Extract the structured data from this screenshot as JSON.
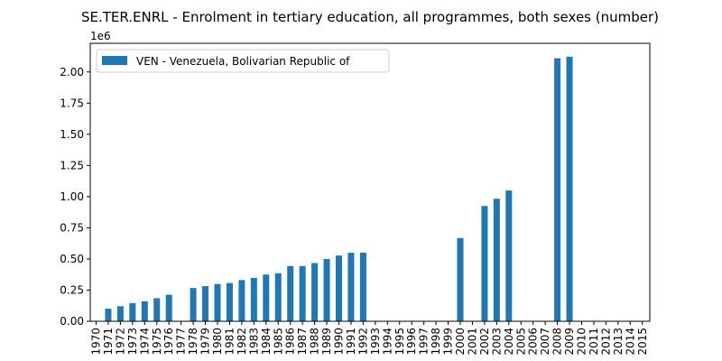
{
  "chart_data": {
    "type": "bar",
    "title": "SE.TER.ENRL - Enrolment in tertiary education, all programmes, both sexes (number)",
    "xlabel": "",
    "ylabel": "",
    "y_offset_label": "1e6",
    "y_scale": 1000000,
    "ylim": [
      0,
      2.23
    ],
    "y_ticks": [
      0.0,
      0.25,
      0.5,
      0.75,
      1.0,
      1.25,
      1.5,
      1.75,
      2.0
    ],
    "y_tick_labels": [
      "0.00",
      "0.25",
      "0.50",
      "0.75",
      "1.00",
      "1.25",
      "1.50",
      "1.75",
      "2.00"
    ],
    "legend_position": "top-left",
    "grid": false,
    "categories": [
      "1970",
      "1971",
      "1972",
      "1973",
      "1974",
      "1975",
      "1976",
      "1977",
      "1978",
      "1979",
      "1980",
      "1981",
      "1982",
      "1983",
      "1984",
      "1985",
      "1986",
      "1987",
      "1988",
      "1989",
      "1990",
      "1991",
      "1992",
      "1993",
      "1994",
      "1995",
      "1996",
      "1997",
      "1998",
      "1999",
      "2000",
      "2001",
      "2002",
      "2003",
      "2004",
      "2005",
      "2006",
      "2007",
      "2008",
      "2009",
      "2010",
      "2011",
      "2012",
      "2013",
      "2014",
      "2015"
    ],
    "series": [
      {
        "name": "VEN - Venezuela, Bolivarian Republic of",
        "color": "#1f77b4",
        "values": [
          null,
          100767,
          121000,
          146000,
          160000,
          185000,
          213000,
          null,
          267000,
          282000,
          299000,
          307000,
          331000,
          348000,
          375000,
          385000,
          443000,
          443000,
          467000,
          500000,
          527000,
          550000,
          550000,
          null,
          null,
          null,
          null,
          null,
          null,
          null,
          668000,
          null,
          925000,
          983000,
          1049000,
          null,
          null,
          null,
          2110000,
          2123000,
          null,
          null,
          null,
          null,
          null,
          null
        ]
      }
    ]
  }
}
